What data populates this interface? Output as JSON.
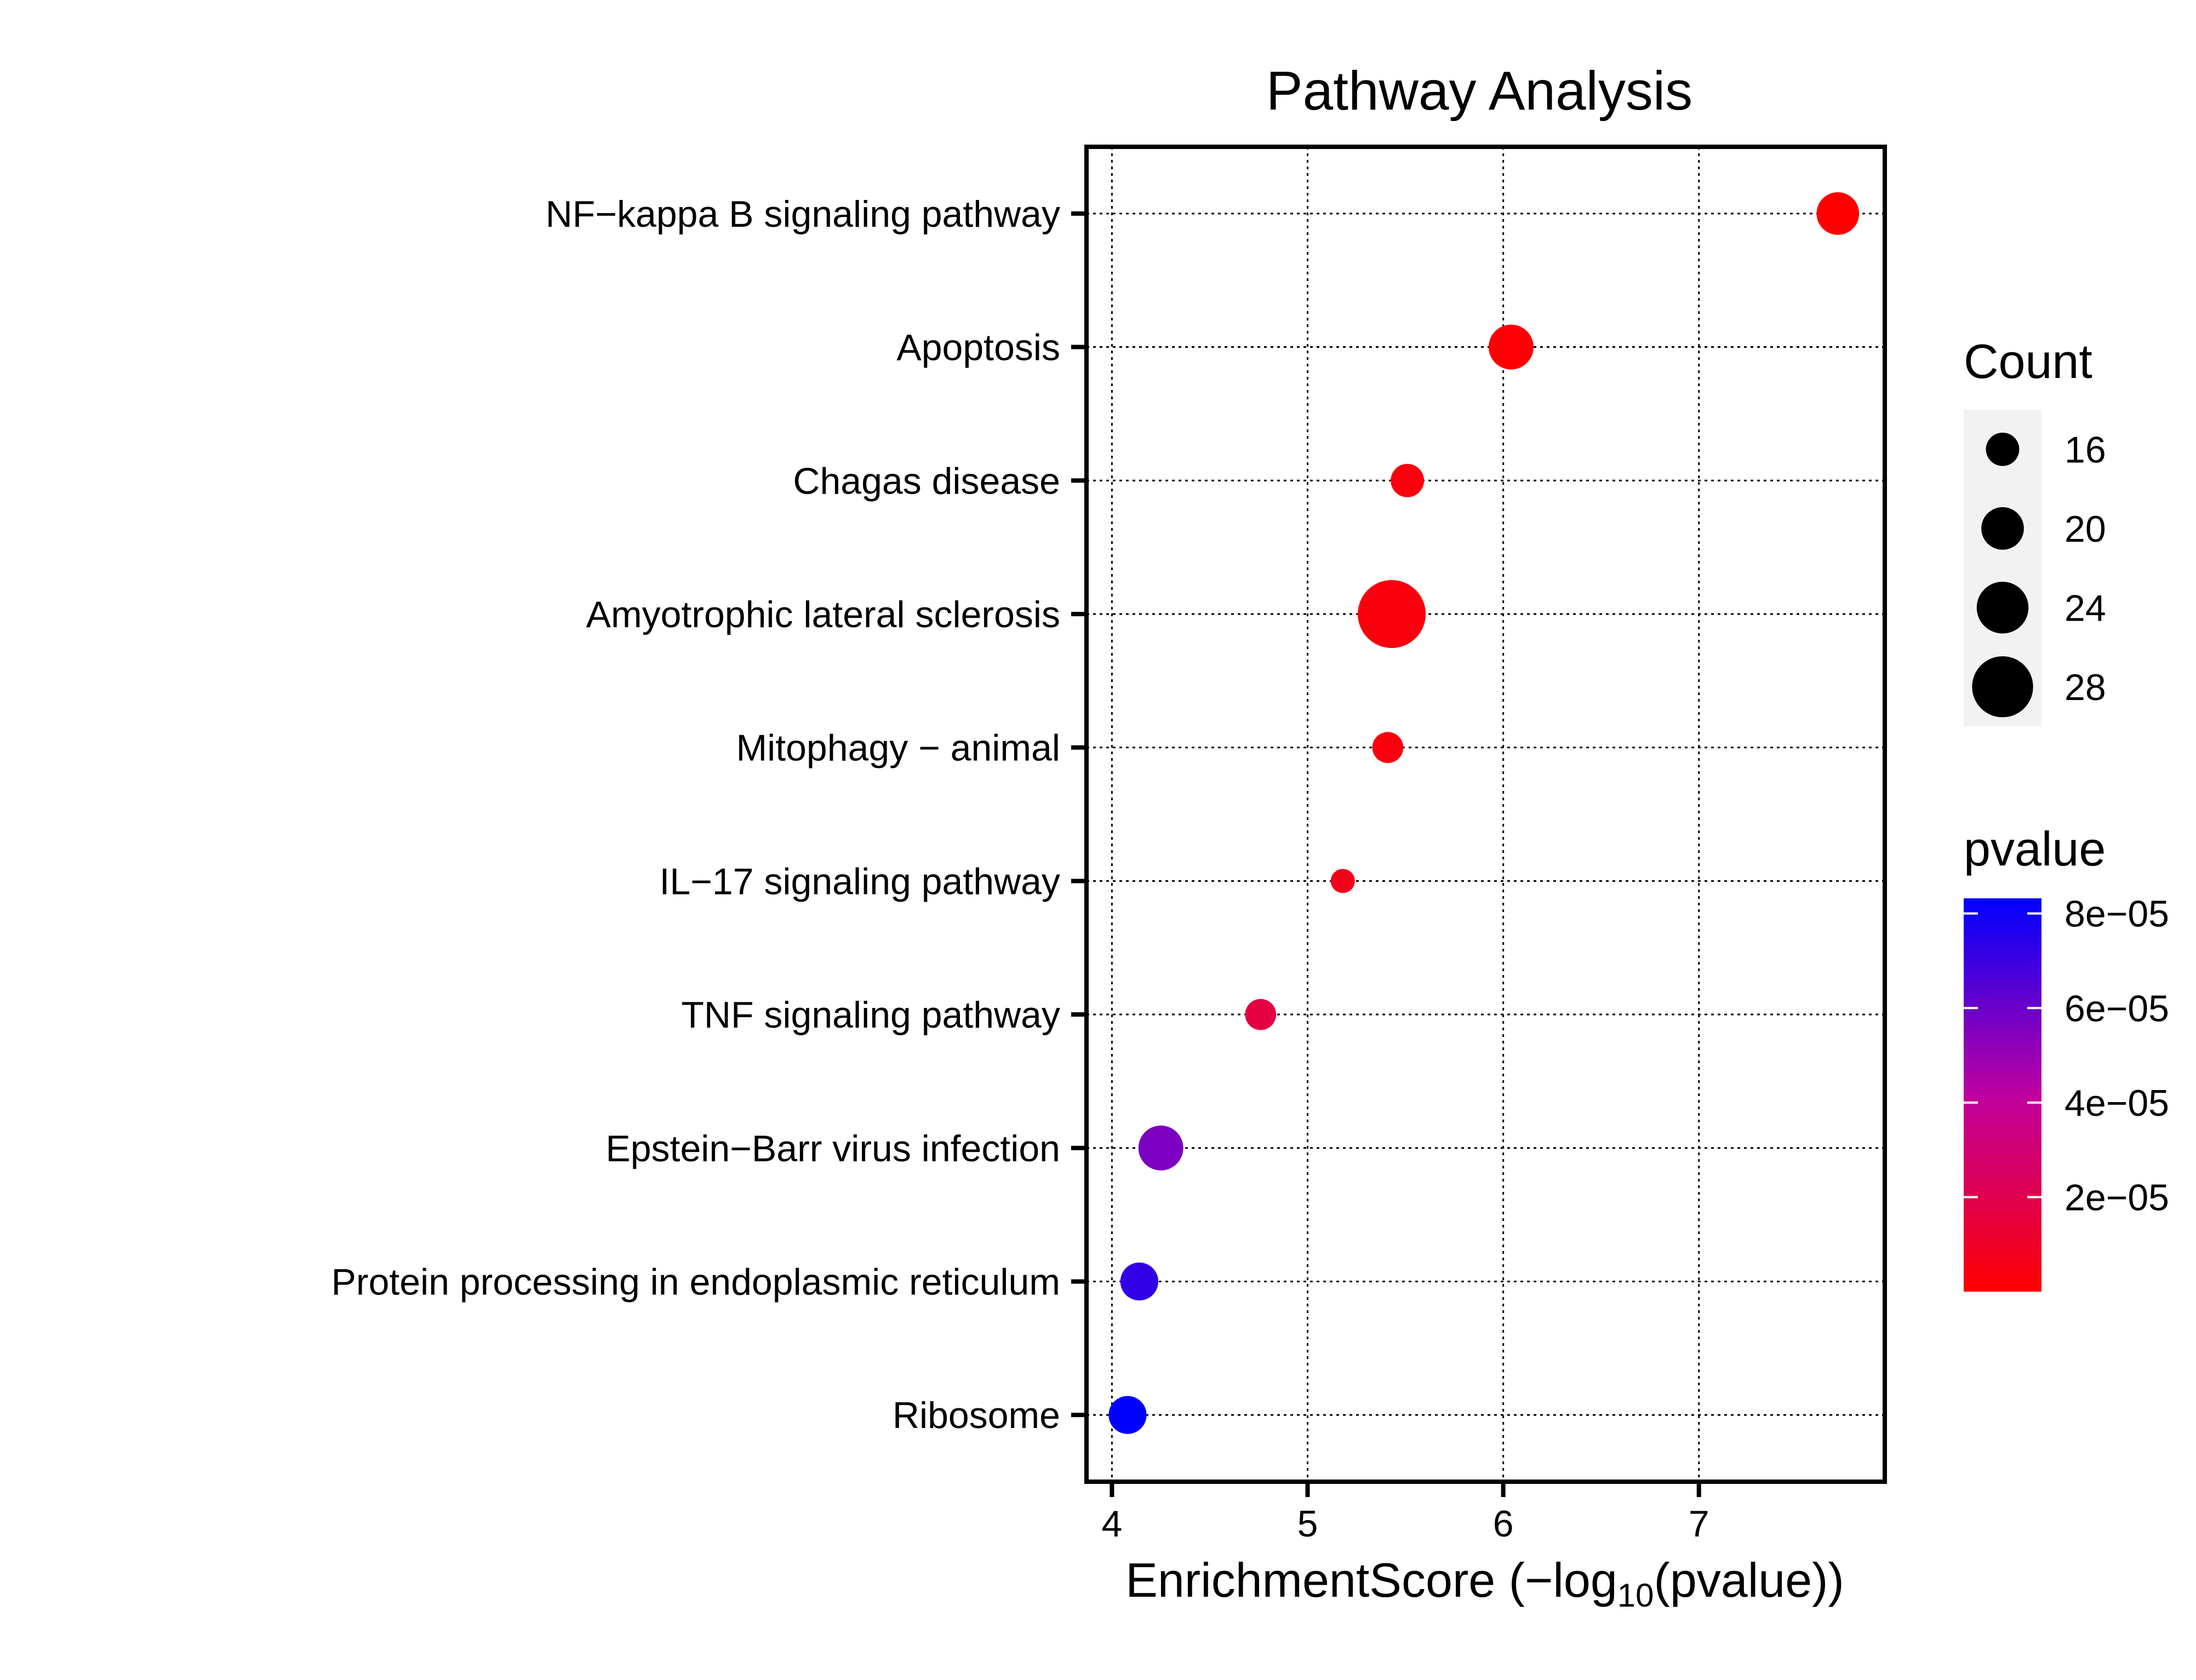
{
  "chart_data": {
    "type": "scatter",
    "title": "Pathway Analysis",
    "xlabel": {
      "main": "EnrichmentScore (−log",
      "subscript": "10",
      "tail": "(pvalue))"
    },
    "ylabel": "",
    "xlim": [
      3.87,
      7.95
    ],
    "xticks": [
      4,
      5,
      6,
      7
    ],
    "grid": true,
    "legend_placement": "right",
    "points": [
      {
        "pathway": "NF−kappa B signaling pathway",
        "enrichment_score": 7.71,
        "count": 20,
        "pvalue": 1.95e-08
      },
      {
        "pathway": "Apoptosis",
        "enrichment_score": 6.04,
        "count": 21,
        "pvalue": 9.1e-07
      },
      {
        "pathway": "Chagas disease",
        "enrichment_score": 5.51,
        "count": 16,
        "pvalue": 3.1e-06
      },
      {
        "pathway": "Amyotrophic lateral sclerosis",
        "enrichment_score": 5.43,
        "count": 31,
        "pvalue": 3.7e-06
      },
      {
        "pathway": "Mitophagy − animal",
        "enrichment_score": 5.41,
        "count": 15,
        "pvalue": 3.9e-06
      },
      {
        "pathway": "IL−17 signaling pathway",
        "enrichment_score": 5.18,
        "count": 12,
        "pvalue": 6.6e-06
      },
      {
        "pathway": "TNF signaling pathway",
        "enrichment_score": 4.76,
        "count": 15,
        "pvalue": 1.74e-05
      },
      {
        "pathway": "Epstein−Barr virus infection",
        "enrichment_score": 4.25,
        "count": 21,
        "pvalue": 5.62e-05
      },
      {
        "pathway": "Protein processing in endoplasmic reticulum",
        "enrichment_score": 4.14,
        "count": 18,
        "pvalue": 7.24e-05
      },
      {
        "pathway": "Ribosome",
        "enrichment_score": 4.08,
        "count": 18,
        "pvalue": 8.32e-05
      }
    ],
    "size_legend": {
      "title": "Count",
      "values": [
        16,
        20,
        24,
        28
      ],
      "labels": [
        "16",
        "20",
        "24",
        "28"
      ]
    },
    "color_legend": {
      "title": "pvalue",
      "labels": [
        "8e−05",
        "6e−05",
        "4e−05",
        "2e−05"
      ],
      "ticks": [
        8e-05,
        6e-05,
        4e-05,
        2e-05
      ],
      "range": [
        1.95e-08,
        8.32e-05
      ],
      "low_color": "#ff0000",
      "high_color": "#0000ff"
    }
  }
}
